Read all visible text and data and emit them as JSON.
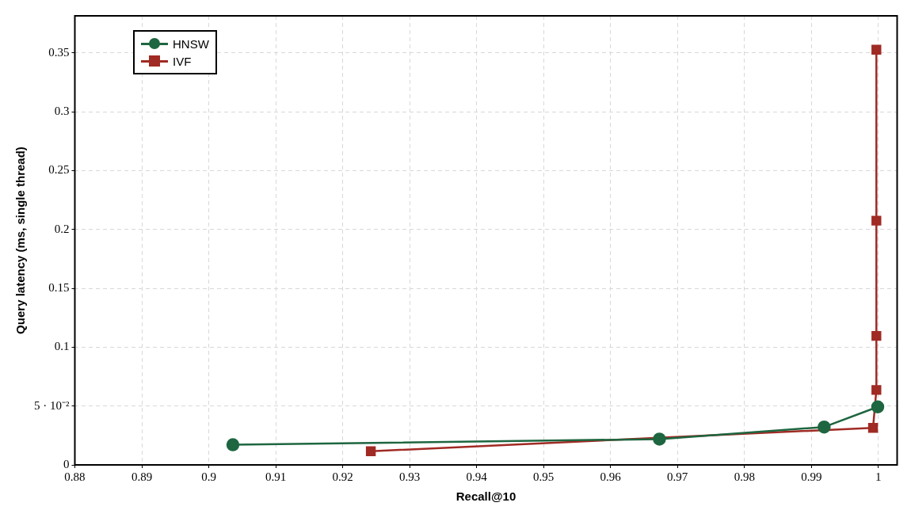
{
  "chart_data": {
    "type": "line",
    "xlabel": "Recall@10",
    "ylabel": "Query latency (ms, single thread)",
    "series": [
      {
        "name": "HNSW",
        "color": "#1e6640",
        "marker": "circle",
        "x": [
          0.9036,
          0.9673,
          0.9919,
          0.9999
        ],
        "values": [
          0.0171,
          0.0219,
          0.0322,
          0.0493
        ]
      },
      {
        "name": "IVF",
        "color": "#a02a24",
        "marker": "square",
        "x": [
          0.9242,
          0.9992,
          0.9997,
          0.9997,
          0.9997,
          0.9997
        ],
        "values": [
          0.0116,
          0.0315,
          0.0637,
          0.1096,
          0.2075,
          0.3527
        ]
      }
    ],
    "xlim": [
      0.88,
      1.0028
    ],
    "xticks": [
      0.88,
      0.89,
      0.9,
      0.91,
      0.92,
      0.93,
      0.94,
      0.95,
      0.96,
      0.97,
      0.98,
      0.99,
      1
    ],
    "ylim": [
      0,
      0.3815
    ],
    "yticks": [
      0,
      {
        "value": 0.05,
        "label": "5 · 10⁻²"
      },
      0.1,
      0.15,
      0.2,
      0.25,
      0.3,
      0.35
    ],
    "grid": true,
    "legend": "top left",
    "line_style": "solid"
  }
}
